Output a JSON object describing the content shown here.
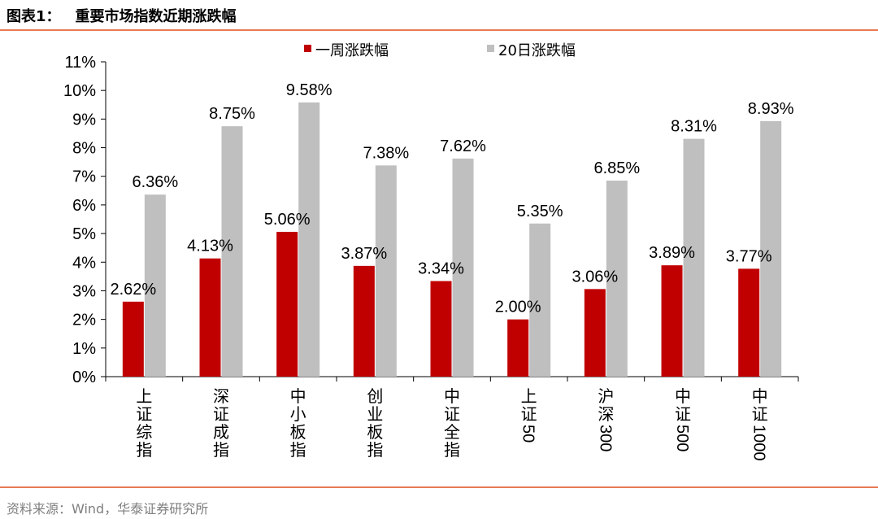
{
  "figure": {
    "title_prefix": "图表1：",
    "title_text": "重要市场指数近期涨跌幅",
    "source": "资料来源：Wind，华泰证券研究所"
  },
  "colors": {
    "series_1": "#c00000",
    "series_2": "#bfbfbf",
    "rule": "#e87a55",
    "source_text": "#7f7f7f"
  },
  "chart_data": {
    "type": "bar",
    "title": "重要市场指数近期涨跌幅",
    "xlabel": "",
    "ylabel": "",
    "unit": "%",
    "ylim": [
      0,
      11
    ],
    "yticks": [
      0,
      1,
      2,
      3,
      4,
      5,
      6,
      7,
      8,
      9,
      10,
      11
    ],
    "ytick_labels": [
      "0%",
      "1%",
      "2%",
      "3%",
      "4%",
      "5%",
      "6%",
      "7%",
      "8%",
      "9%",
      "10%",
      "11%"
    ],
    "grid": false,
    "legend_position": "top-center",
    "categories": [
      "上证综指",
      "深证成指",
      "中小板指",
      "创业板指",
      "中证全指",
      "上证50",
      "沪深300",
      "中证500",
      "中证1000"
    ],
    "category_lines": [
      [
        "上",
        "证",
        "综",
        "指"
      ],
      [
        "深",
        "证",
        "成",
        "指"
      ],
      [
        "中",
        "小",
        "板",
        "指"
      ],
      [
        "创",
        "业",
        "板",
        "指"
      ],
      [
        "中",
        "证",
        "全",
        "指"
      ],
      [
        "上",
        "证",
        "50"
      ],
      [
        "沪",
        "深",
        "300"
      ],
      [
        "中",
        "证",
        "500"
      ],
      [
        "中",
        "证",
        "1000"
      ]
    ],
    "series": [
      {
        "name": "一周涨跌幅",
        "color": "#c00000",
        "values": [
          2.62,
          4.13,
          5.06,
          3.87,
          3.34,
          2.0,
          3.06,
          3.89,
          3.77
        ],
        "labels": [
          "2.62%",
          "4.13%",
          "5.06%",
          "3.87%",
          "3.34%",
          "2.00%",
          "3.06%",
          "3.89%",
          "3.77%"
        ]
      },
      {
        "name": "20日涨跌幅",
        "color": "#bfbfbf",
        "values": [
          6.36,
          8.75,
          9.58,
          7.38,
          7.62,
          5.35,
          6.85,
          8.31,
          8.93
        ],
        "labels": [
          "6.36%",
          "8.75%",
          "9.58%",
          "7.38%",
          "7.62%",
          "5.35%",
          "6.85%",
          "8.31%",
          "8.93%"
        ]
      }
    ]
  }
}
